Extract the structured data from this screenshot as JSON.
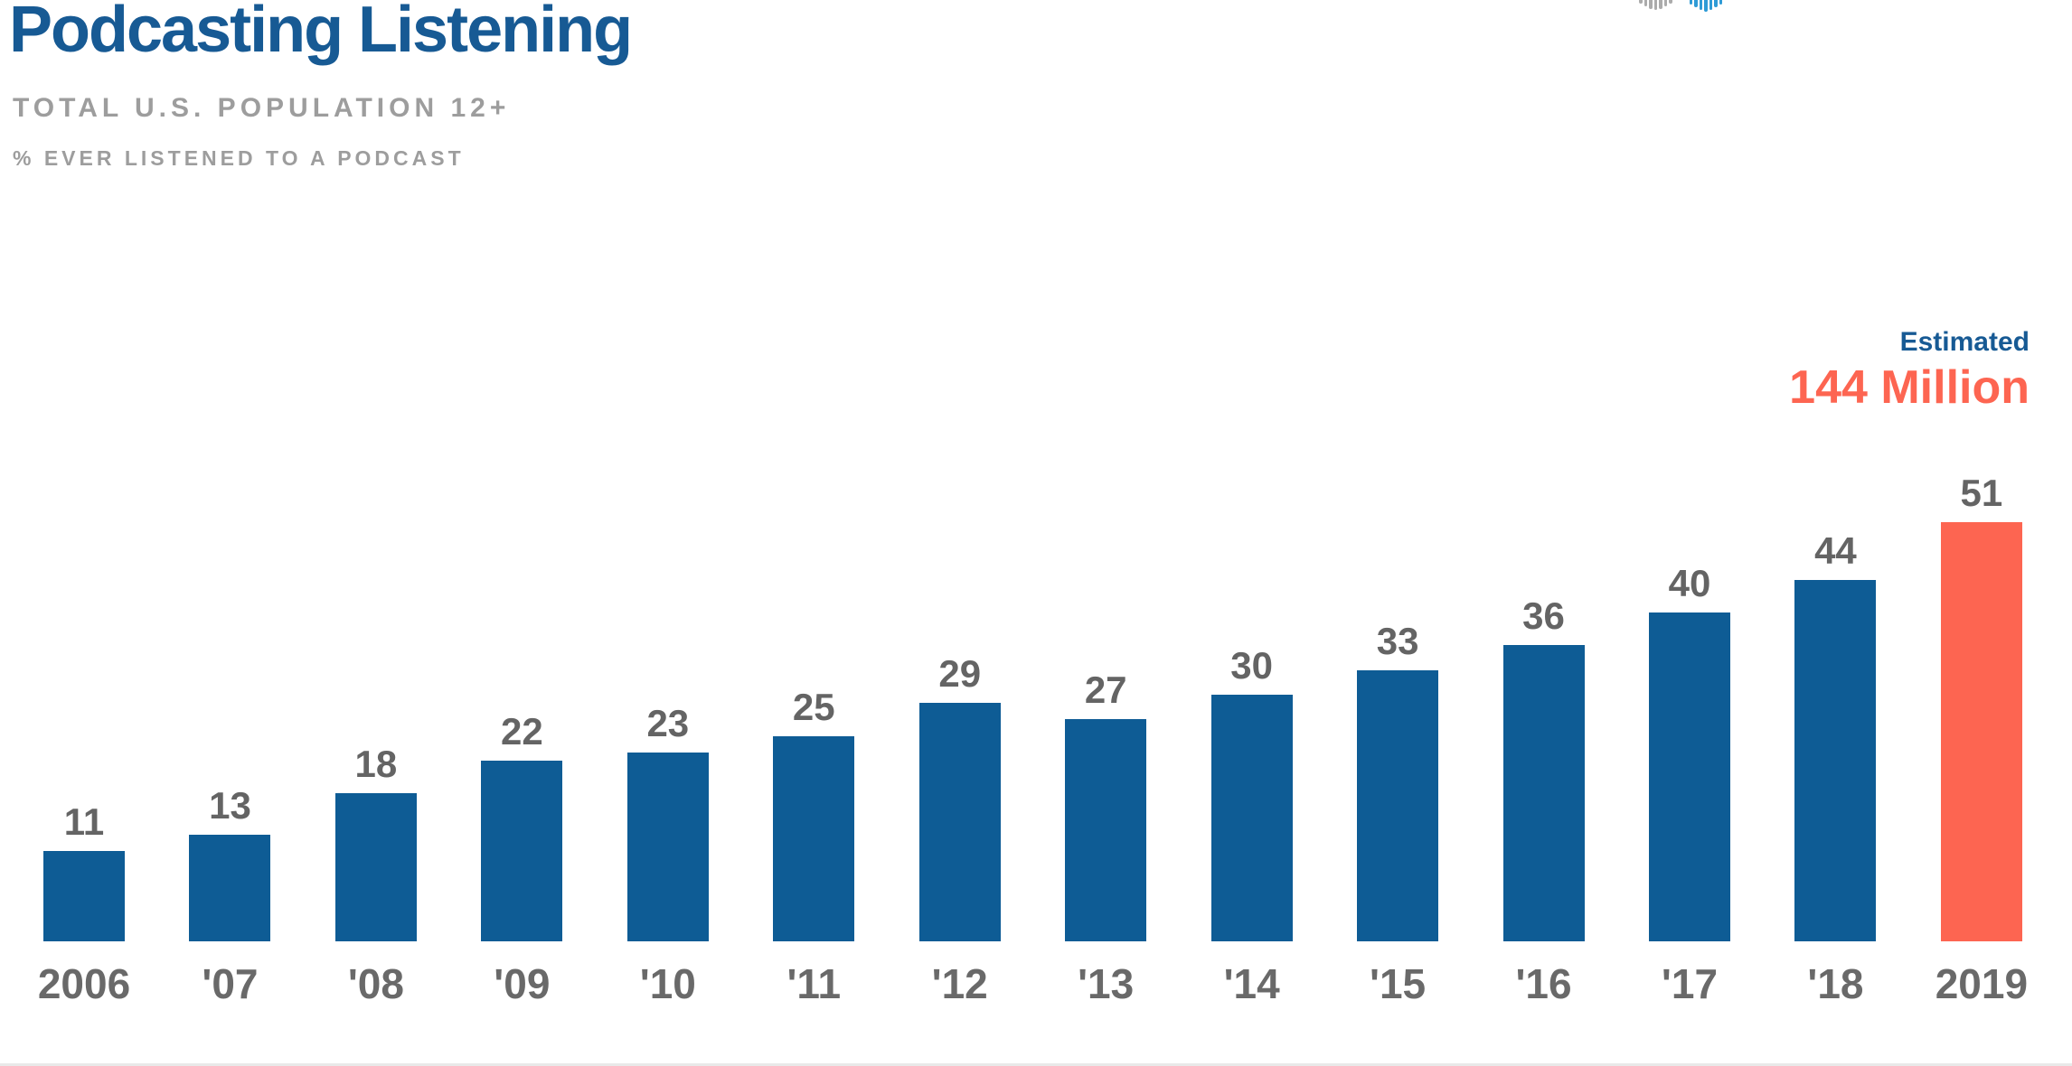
{
  "header": {
    "title": "Podcasting Listening",
    "subtitle": "TOTAL U.S. POPULATION 12+",
    "measure_note": "% EVER LISTENED TO A PODCAST"
  },
  "annotation": {
    "label": "Estimated",
    "value": "144 Million"
  },
  "logo": {
    "name": "waveform-logo",
    "gray_icon": "waveform-icon-gray",
    "blue_icon": "waveform-icon-blue"
  },
  "colors": {
    "title_blue": "#175A94",
    "bar_blue": "#0E5C95",
    "accent_orange": "#FD6551",
    "subtle_gray": "#9D9D9D",
    "value_gray": "#646464",
    "axis_gray": "#696969",
    "logo_gray": "#ABABAB",
    "logo_blue": "#2E9BD6"
  },
  "chart_data": {
    "type": "bar",
    "title": "Podcasting Listening",
    "subtitle": "TOTAL U.S. POPULATION 12+",
    "ylabel": "% ever listened to a podcast",
    "categories": [
      "2006",
      "'07",
      "'08",
      "'09",
      "'10",
      "'11",
      "'12",
      "'13",
      "'14",
      "'15",
      "'16",
      "'17",
      "'18",
      "2019"
    ],
    "values": [
      11,
      13,
      18,
      22,
      23,
      25,
      29,
      27,
      30,
      33,
      36,
      40,
      44,
      51
    ],
    "highlight_index": 13,
    "highlight_annotation": "Estimated 144 Million",
    "data_labels": true,
    "grid": false,
    "axis_lines": false,
    "legend": null,
    "ylim": [
      0,
      55
    ]
  }
}
